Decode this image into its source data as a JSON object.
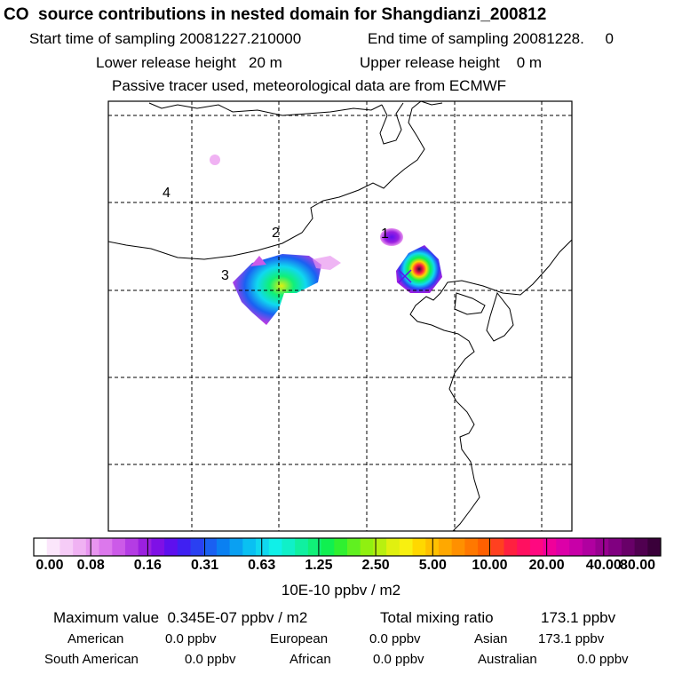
{
  "header": {
    "title": "CO  source contributions in nested domain for Shangdianzi_200812",
    "start_label": "Start time of sampling 20081227.210000",
    "end_label": "End time of sampling 20081228.     0",
    "lower_label": "Lower release height   20 m",
    "upper_label": "Upper release height    0 m",
    "tracer_note": "Passive tracer used, meteorological data are from ECMWF"
  },
  "map": {
    "region_labels": [
      "1",
      "2",
      "3",
      "4"
    ],
    "site_marker": "station-cross-icon",
    "colors": {
      "border": "#000000",
      "grid": "#000000"
    }
  },
  "colorbar": {
    "tick_labels": [
      "0.00",
      "0.08",
      "0.16",
      "0.31",
      "0.63",
      "1.25",
      "2.50",
      "5.00",
      "10.00",
      "20.00",
      "40.00",
      "80.00"
    ],
    "units": "10E-10 ppbv / m2",
    "swatches": [
      "#ffffff",
      "#fbe6fb",
      "#f6ccf7",
      "#f0b2f3",
      "#e895f0",
      "#dc78ec",
      "#cc5ae8",
      "#b43ce4",
      "#9b20e0",
      "#7f10e6",
      "#5e10ee",
      "#4020f2",
      "#2a40f2",
      "#1a60f2",
      "#0a80f2",
      "#0aa0f2",
      "#0ac0f2",
      "#10d8f0",
      "#10f0e8",
      "#10f0c8",
      "#10f0a0",
      "#10f078",
      "#10f050",
      "#30f030",
      "#60f020",
      "#90f010",
      "#b8f010",
      "#e0f010",
      "#f8f010",
      "#ffd800",
      "#ffc000",
      "#ffa800",
      "#ff9000",
      "#ff7800",
      "#ff6000",
      "#ff4020",
      "#ff2040",
      "#ff1060",
      "#ff0880",
      "#f0009a",
      "#dc00a8",
      "#c800a8",
      "#b000a0",
      "#980090",
      "#800080",
      "#680068",
      "#500050",
      "#3a003a"
    ]
  },
  "stats": {
    "max_label": "Maximum value  0.345E-07 ppbv / m2",
    "total_label": "Total mixing ratio",
    "total_value": "173.1 ppbv",
    "rows": [
      [
        [
          "American",
          "0.0 ppbv"
        ],
        [
          "European",
          "0.0 ppbv"
        ],
        [
          "Asian",
          "173.1 ppbv"
        ]
      ],
      [
        [
          "South American",
          "0.0 ppbv"
        ],
        [
          "African",
          "0.0 ppbv"
        ],
        [
          "Australian",
          "0.0 ppbv"
        ]
      ]
    ]
  }
}
